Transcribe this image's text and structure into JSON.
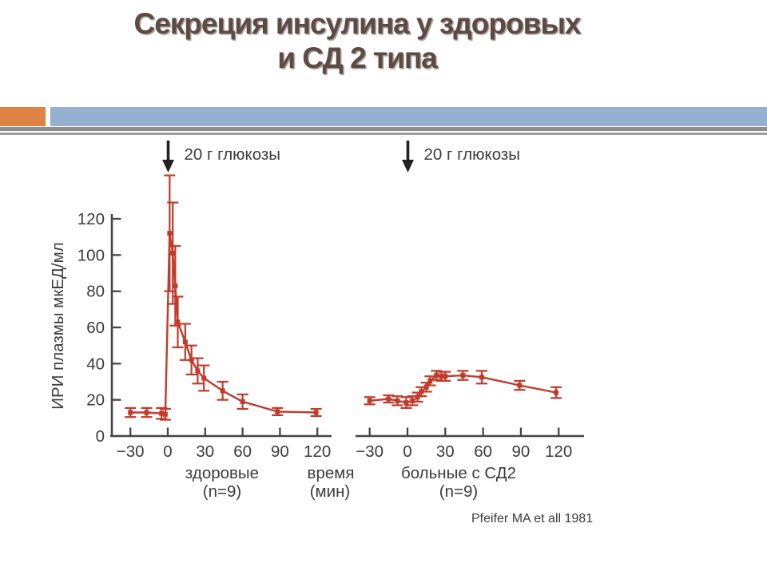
{
  "slide": {
    "title_line1": "Секреция инсулина у здоровых",
    "title_line2": "и СД 2 типа",
    "title_color": "#5e4a44",
    "accent_orange": "#dd8344",
    "accent_blue": "#94b1d1",
    "divider_dark": "#8d8d8d",
    "divider_light": "#9e9e9e"
  },
  "figure": {
    "ylabel": "ИРИ плазмы мкЕД/мл",
    "xlabel_line1": "время",
    "xlabel_line2": "(мин)",
    "citation": "Pfeifer MA et all 1981",
    "curve_color": "#c23a2a",
    "axis_color": "#454545",
    "text_color": "#3c3c3c",
    "arrow_color": "#222222"
  },
  "chart_data": [
    {
      "type": "line",
      "title": "здоровые",
      "n_label": "(n=9)",
      "annotation": "20 г глюкозы",
      "arrow_at_x": 0,
      "xlabel": "время (мин)",
      "ylabel": "ИРИ плазмы мкЕД/мл",
      "xlim": [
        -45,
        132
      ],
      "ylim": [
        0,
        145
      ],
      "grid": false,
      "xticks": [
        -30,
        0,
        30,
        60,
        90,
        120
      ],
      "xtick_labels": [
        "−30",
        "0",
        "30",
        "60",
        "90",
        "120"
      ],
      "yticks": [
        0,
        20,
        40,
        60,
        80,
        100,
        120
      ],
      "x": [
        -30,
        -17,
        -5,
        -2,
        1.5,
        4,
        6,
        8,
        14,
        19,
        24,
        29,
        44,
        60,
        88,
        119
      ],
      "y": [
        13,
        13,
        12.5,
        12,
        112,
        101,
        83,
        63,
        52,
        42,
        36,
        32,
        25,
        19,
        13.5,
        13
      ],
      "yerr": [
        2.5,
        2.5,
        3,
        3,
        32,
        28,
        22,
        14,
        10,
        8,
        7,
        7,
        5,
        4,
        2,
        2
      ]
    },
    {
      "type": "line",
      "title": "больные с СД2",
      "n_label": "(n=9)",
      "annotation": "20 г глюкозы",
      "arrow_at_x": 0,
      "xlabel": "время (мин)",
      "ylabel": "ИРИ плазмы мкЕД/мл",
      "xlim": [
        -42,
        140
      ],
      "ylim": [
        0,
        145
      ],
      "grid": false,
      "xticks": [
        -30,
        0,
        30,
        60,
        90,
        120
      ],
      "xtick_labels": [
        "−30",
        "0",
        "30",
        "60",
        "90",
        "120"
      ],
      "yticks": [
        0,
        20,
        40,
        60,
        80,
        100,
        120
      ],
      "x": [
        -30,
        -15,
        -8,
        -1,
        4,
        8,
        11,
        15,
        18,
        23,
        27,
        30,
        44,
        59,
        89,
        118
      ],
      "y": [
        19.5,
        20.5,
        19.5,
        18.5,
        19.5,
        21.5,
        24.5,
        27,
        30.5,
        33.5,
        33,
        33,
        33.5,
        32.5,
        28,
        24
      ],
      "yerr": [
        2,
        2,
        2.5,
        3,
        2.5,
        2.5,
        2.5,
        2.5,
        2.5,
        2.5,
        2.5,
        2.5,
        2.5,
        3.5,
        2.5,
        3
      ]
    }
  ]
}
